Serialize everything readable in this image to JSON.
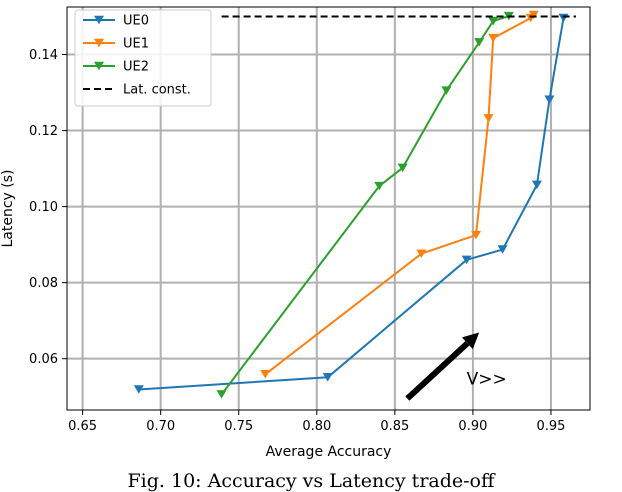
{
  "caption": "Fig. 10: Accuracy vs Latency trade-off",
  "chart_data": {
    "type": "line",
    "title": "",
    "xlabel": "Average Accuracy",
    "ylabel": "Latency (s)",
    "xlim": [
      0.64,
      0.975
    ],
    "ylim": [
      0.0465,
      0.1525
    ],
    "xticks": [
      0.65,
      0.7,
      0.75,
      0.8,
      0.85,
      0.9,
      0.95
    ],
    "xtick_labels": [
      "0.65",
      "0.70",
      "0.75",
      "0.80",
      "0.85",
      "0.90",
      "0.95"
    ],
    "yticks": [
      0.06,
      0.08,
      0.1,
      0.12,
      0.14
    ],
    "ytick_labels": [
      "0.06",
      "0.08",
      "0.10",
      "0.12",
      "0.14"
    ],
    "grid": true,
    "legend_position": "top-left",
    "series": [
      {
        "name": "UE0",
        "color": "#1f77b4",
        "marker": "triangle-down",
        "points": [
          [
            0.686,
            0.0519
          ],
          [
            0.807,
            0.0551
          ],
          [
            0.896,
            0.086
          ],
          [
            0.919,
            0.0887
          ],
          [
            0.941,
            0.1057
          ],
          [
            0.949,
            0.1281
          ],
          [
            0.958,
            0.1496
          ]
        ]
      },
      {
        "name": "UE1",
        "color": "#ff7f0e",
        "marker": "triangle-down",
        "points": [
          [
            0.767,
            0.0559
          ],
          [
            0.867,
            0.0876
          ],
          [
            0.902,
            0.0925
          ],
          [
            0.91,
            0.1232
          ],
          [
            0.913,
            0.1443
          ],
          [
            0.937,
            0.1496
          ],
          [
            0.939,
            0.1504
          ]
        ]
      },
      {
        "name": "UE2",
        "color": "#2ca02c",
        "marker": "triangle-down",
        "points": [
          [
            0.739,
            0.0506
          ],
          [
            0.84,
            0.1054
          ],
          [
            0.855,
            0.1102
          ],
          [
            0.883,
            0.1305
          ],
          [
            0.904,
            0.1432
          ],
          [
            0.913,
            0.1488
          ],
          [
            0.923,
            0.1501
          ]
        ]
      },
      {
        "name": "Lat. const.",
        "color": "#000000",
        "style": "dashed",
        "points": [
          [
            0.739,
            0.15
          ],
          [
            0.966,
            0.15
          ]
        ]
      }
    ],
    "annotation": {
      "text": "V>>",
      "arrow_from": [
        0.858,
        0.0495
      ],
      "arrow_to": [
        0.904,
        0.0669
      ],
      "text_at": [
        0.896,
        0.0532
      ]
    }
  }
}
